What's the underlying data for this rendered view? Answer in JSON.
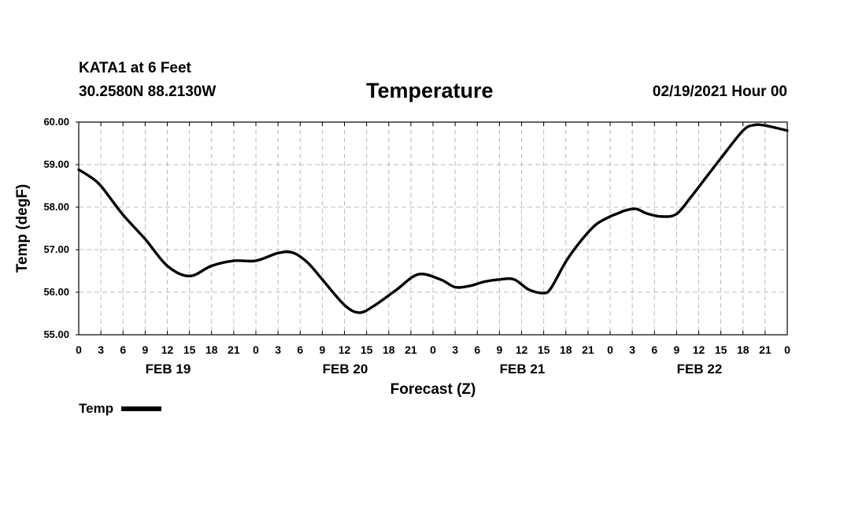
{
  "header": {
    "station": "KATA1 at 6 Feet",
    "coords": "30.2580N 88.2130W",
    "title": "Temperature",
    "stamp": "02/19/2021 Hour 00"
  },
  "legend": {
    "label": "Temp"
  },
  "colors": {
    "line": "#000000",
    "grid": "#bbbbbb",
    "background": "#ffffff"
  },
  "chart_data": {
    "type": "line",
    "title": "Temperature",
    "xlabel": "Forecast (Z)",
    "ylabel": "Temp (degF)",
    "xlim": [
      0,
      96
    ],
    "ylim": [
      55,
      60
    ],
    "yticks": [
      "55.00",
      "56.00",
      "57.00",
      "58.00",
      "59.00",
      "60.00"
    ],
    "xtick_labels": [
      "0",
      "3",
      "6",
      "9",
      "12",
      "15",
      "18",
      "21",
      "0",
      "3",
      "6",
      "9",
      "12",
      "15",
      "18",
      "21",
      "0",
      "3",
      "6",
      "9",
      "12",
      "15",
      "18",
      "21",
      "0",
      "3",
      "6",
      "9",
      "12",
      "15",
      "18",
      "21",
      "0"
    ],
    "day_labels": [
      {
        "label": "FEB 19",
        "hour": 12
      },
      {
        "label": "FEB 20",
        "hour": 36
      },
      {
        "label": "FEB 21",
        "hour": 60
      },
      {
        "label": "FEB 22",
        "hour": 84
      }
    ],
    "grid": true,
    "legend_position": "bottom-left",
    "series": [
      {
        "name": "Temp",
        "x": [
          0,
          1.5,
          3,
          6,
          9,
          12,
          15,
          18,
          21,
          24,
          27,
          29,
          31,
          33,
          36,
          38,
          40,
          43,
          46,
          49,
          51,
          53,
          55,
          57,
          59,
          61,
          63,
          64,
          66,
          68,
          70,
          72,
          73,
          74,
          75.5,
          77,
          79,
          81,
          83,
          85,
          87,
          90,
          91.5,
          93,
          96
        ],
        "values": [
          58.88,
          58.72,
          58.5,
          57.82,
          57.25,
          56.62,
          56.38,
          56.62,
          56.74,
          56.74,
          56.92,
          56.93,
          56.7,
          56.3,
          55.7,
          55.52,
          55.68,
          56.05,
          56.42,
          56.3,
          56.12,
          56.15,
          56.25,
          56.3,
          56.3,
          56.06,
          55.98,
          56.1,
          56.72,
          57.2,
          57.58,
          57.78,
          57.85,
          57.92,
          57.96,
          57.85,
          57.78,
          57.84,
          58.25,
          58.7,
          59.15,
          59.8,
          59.93,
          59.92,
          59.8
        ]
      }
    ]
  }
}
